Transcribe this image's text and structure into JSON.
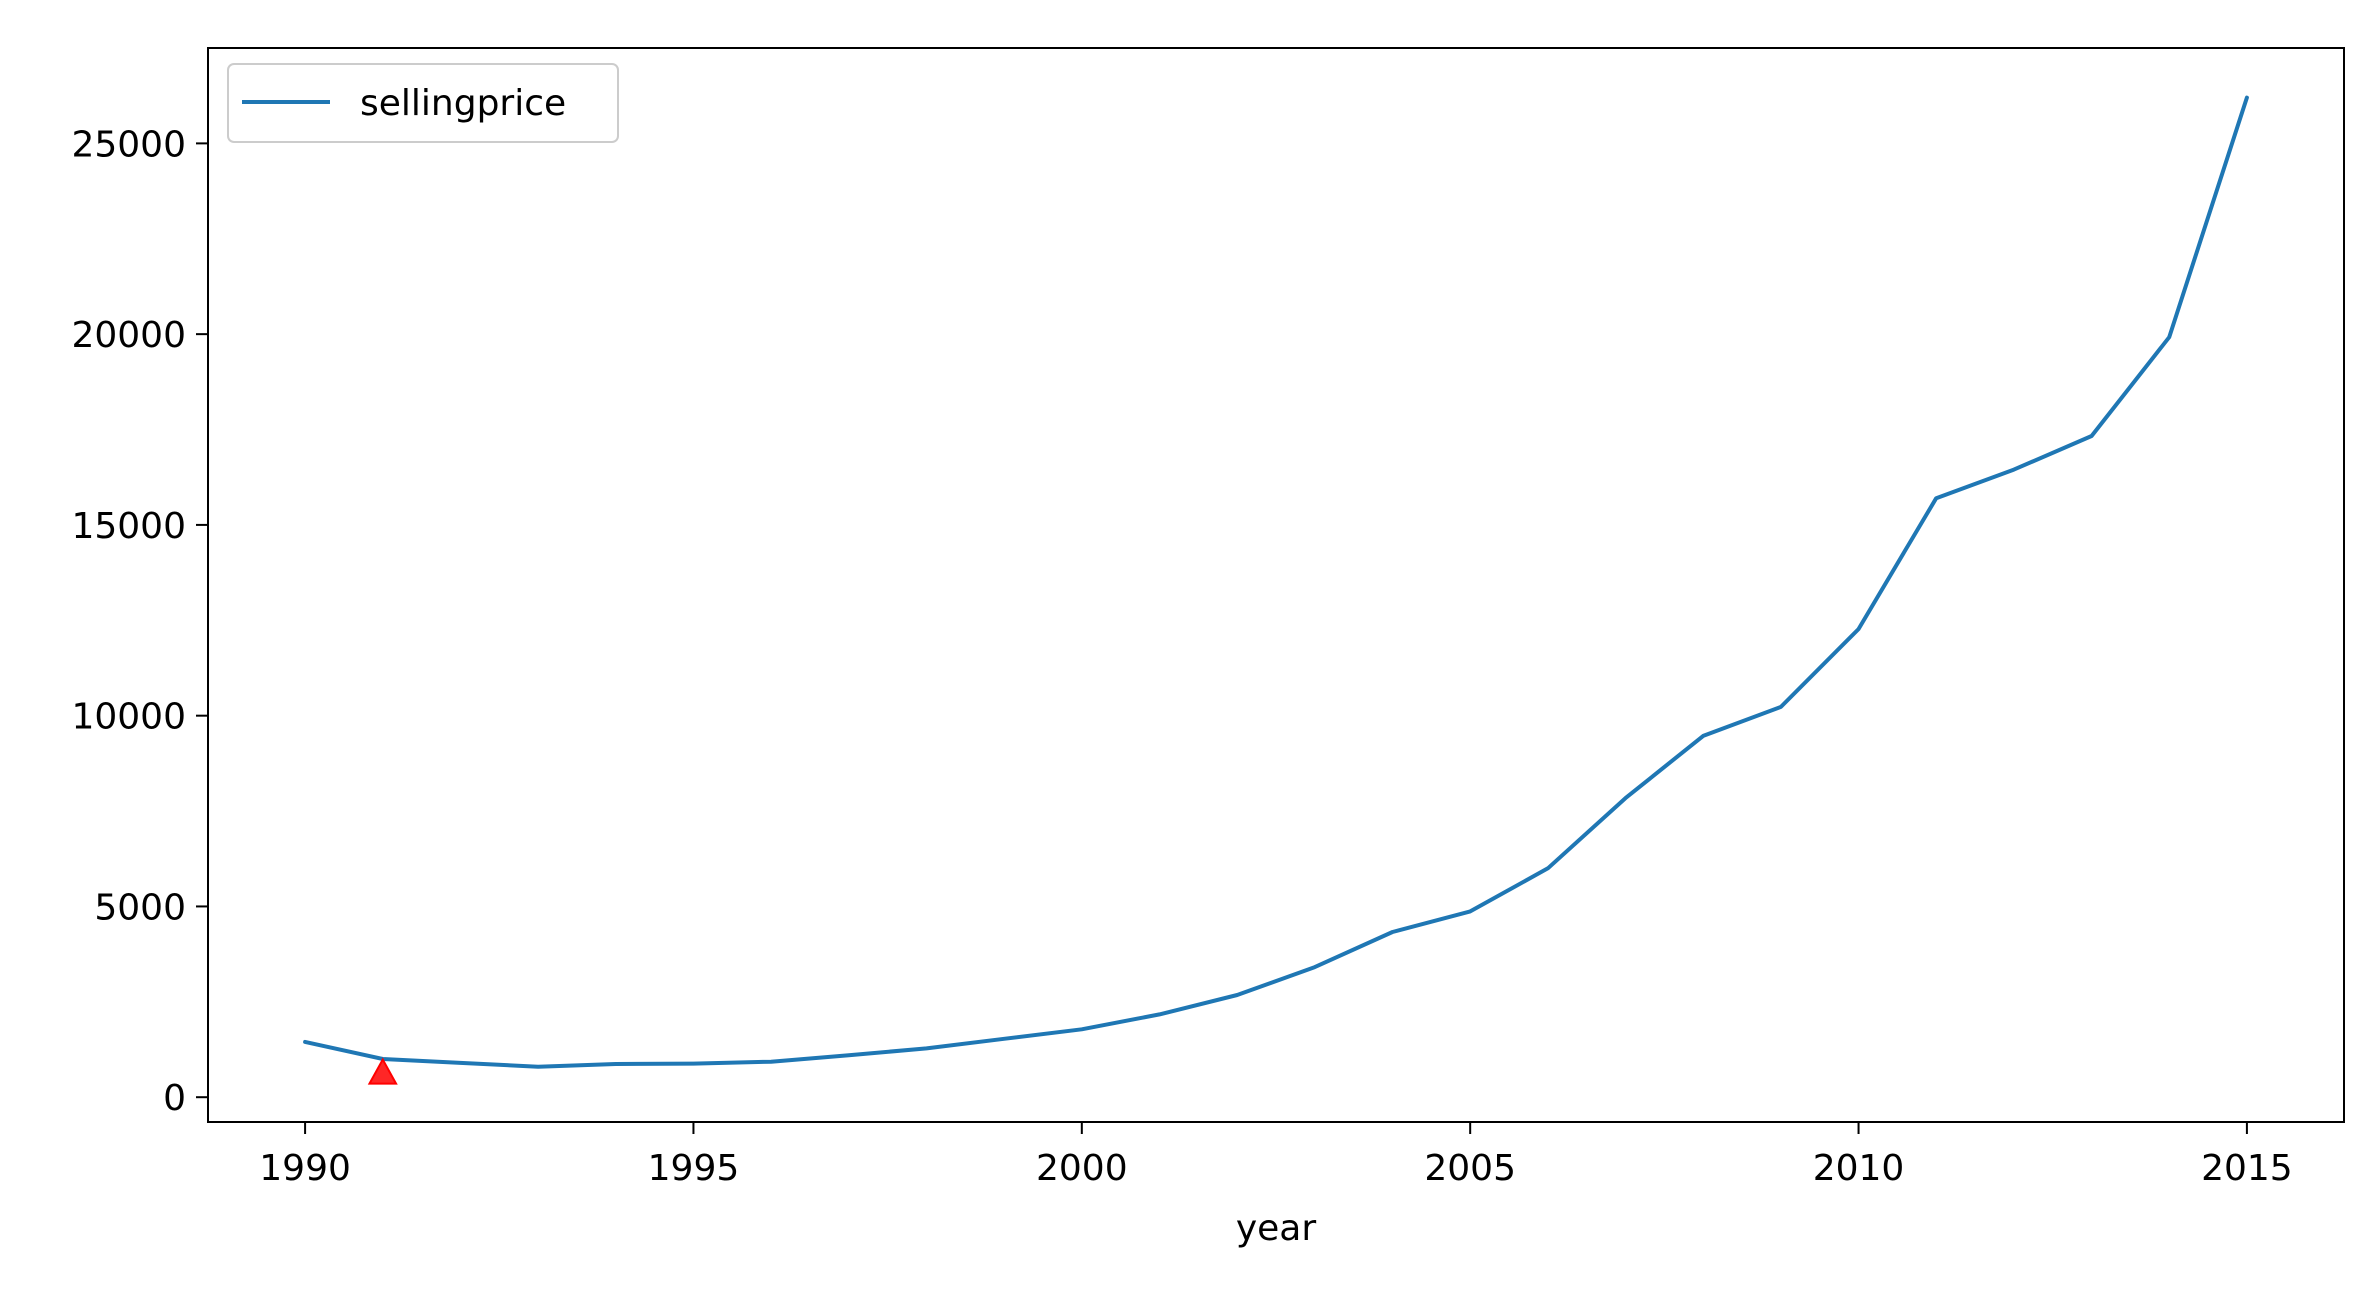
{
  "chart_data": {
    "type": "line",
    "title": "",
    "xlabel": "year",
    "ylabel": "",
    "x": [
      1990,
      1991,
      1992,
      1993,
      1994,
      1995,
      1996,
      1997,
      1998,
      1999,
      2000,
      2001,
      2002,
      2003,
      2004,
      2005,
      2006,
      2007,
      2008,
      2009,
      2010,
      2011,
      2012,
      2013,
      2014,
      2015
    ],
    "series": [
      {
        "name": "sellingprice",
        "color": "#1f77b4",
        "values": [
          1450,
          1000,
          900,
          800,
          870,
          880,
          930,
          1100,
          1280,
          1530,
          1780,
          2170,
          2680,
          3410,
          4330,
          4870,
          6000,
          7840,
          9470,
          10230,
          12270,
          15700,
          16450,
          17330,
          19920,
          26200
        ]
      }
    ],
    "annotations": [
      {
        "type": "marker",
        "shape": "triangle-up",
        "color": "#ff0000",
        "x": 1991,
        "y": 620
      }
    ],
    "xlim": [
      1988.75,
      2016.25
    ],
    "ylim": [
      -650,
      27500
    ],
    "xticks": [
      1990,
      1995,
      2000,
      2005,
      2010,
      2015
    ],
    "xtick_labels": [
      "1990",
      "1995",
      "2000",
      "2005",
      "2010",
      "2015"
    ],
    "yticks": [
      0,
      5000,
      10000,
      15000,
      20000,
      25000
    ],
    "ytick_labels": [
      "0",
      "5000",
      "10000",
      "15000",
      "20000",
      "25000"
    ],
    "grid": false,
    "legend": {
      "placement": "upper-left",
      "entries": [
        "sellingprice"
      ]
    }
  }
}
